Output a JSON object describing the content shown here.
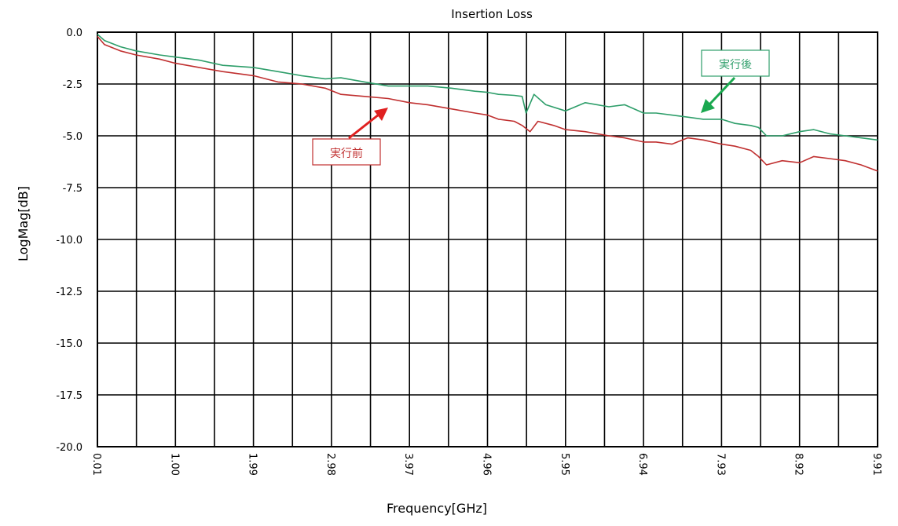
{
  "chart_data": {
    "type": "line",
    "title": "Insertion Loss",
    "xlabel": "Frequency[GHz]",
    "ylabel": "LogMag[dB]",
    "xlim": [
      0.01,
      9.91
    ],
    "ylim": [
      -20.0,
      0.0
    ],
    "x_ticks": [
      "0.01",
      "1.00",
      "1.99",
      "2.98",
      "3.97",
      "4.96",
      "5.95",
      "6.94",
      "7.93",
      "8.92",
      "9.91"
    ],
    "y_ticks": [
      "0.0",
      "-2.5",
      "-5.0",
      "-7.5",
      "-10.0",
      "-12.5",
      "-15.0",
      "-17.5",
      "-20.0"
    ],
    "grid": true,
    "series": [
      {
        "name": "実行後",
        "color": "#2e9e6a",
        "x": [
          0.01,
          0.1,
          0.3,
          0.5,
          0.8,
          1.0,
          1.3,
          1.6,
          1.99,
          2.3,
          2.6,
          2.9,
          3.1,
          3.4,
          3.7,
          3.97,
          4.2,
          4.5,
          4.8,
          4.96,
          5.1,
          5.3,
          5.4,
          5.45,
          5.55,
          5.7,
          5.95,
          6.2,
          6.5,
          6.7,
          6.94,
          7.1,
          7.3,
          7.5,
          7.7,
          7.93,
          8.1,
          8.3,
          8.4,
          8.5,
          8.7,
          8.92,
          9.1,
          9.3,
          9.5,
          9.7,
          9.91
        ],
        "values": [
          -0.1,
          -0.4,
          -0.7,
          -0.9,
          -1.1,
          -1.2,
          -1.35,
          -1.6,
          -1.7,
          -1.9,
          -2.1,
          -2.25,
          -2.2,
          -2.4,
          -2.6,
          -2.6,
          -2.6,
          -2.7,
          -2.85,
          -2.9,
          -3.0,
          -3.05,
          -3.1,
          -3.9,
          -3.0,
          -3.5,
          -3.8,
          -3.4,
          -3.6,
          -3.5,
          -3.9,
          -3.9,
          -4.0,
          -4.1,
          -4.2,
          -4.2,
          -4.4,
          -4.5,
          -4.6,
          -5.0,
          -5.0,
          -4.8,
          -4.7,
          -4.9,
          -5.0,
          -5.1,
          -5.2
        ]
      },
      {
        "name": "実行前",
        "color": "#c03030",
        "x": [
          0.01,
          0.1,
          0.3,
          0.5,
          0.8,
          1.0,
          1.3,
          1.6,
          1.99,
          2.3,
          2.6,
          2.9,
          3.1,
          3.4,
          3.7,
          3.97,
          4.2,
          4.5,
          4.8,
          4.96,
          5.1,
          5.3,
          5.4,
          5.5,
          5.6,
          5.8,
          5.95,
          6.2,
          6.5,
          6.7,
          6.94,
          7.1,
          7.3,
          7.5,
          7.7,
          7.93,
          8.1,
          8.3,
          8.4,
          8.5,
          8.7,
          8.92,
          9.1,
          9.3,
          9.5,
          9.7,
          9.91
        ],
        "values": [
          -0.2,
          -0.6,
          -0.9,
          -1.1,
          -1.3,
          -1.5,
          -1.7,
          -1.9,
          -2.1,
          -2.4,
          -2.5,
          -2.7,
          -3.0,
          -3.1,
          -3.2,
          -3.4,
          -3.5,
          -3.7,
          -3.9,
          -4.0,
          -4.2,
          -4.3,
          -4.5,
          -4.8,
          -4.3,
          -4.5,
          -4.7,
          -4.8,
          -5.0,
          -5.1,
          -5.3,
          -5.3,
          -5.4,
          -5.1,
          -5.2,
          -5.4,
          -5.5,
          -5.7,
          -6.0,
          -6.4,
          -6.2,
          -6.3,
          -6.0,
          -6.1,
          -6.2,
          -6.4,
          -6.7
        ]
      }
    ],
    "annotations": [
      {
        "text": "実行後",
        "color": "#2e9e6a",
        "points_to_x": 7.7,
        "points_to_y": -3.9
      },
      {
        "text": "実行前",
        "color": "#c03030",
        "points_to_x": 3.7,
        "points_to_y": -3.6
      }
    ]
  }
}
